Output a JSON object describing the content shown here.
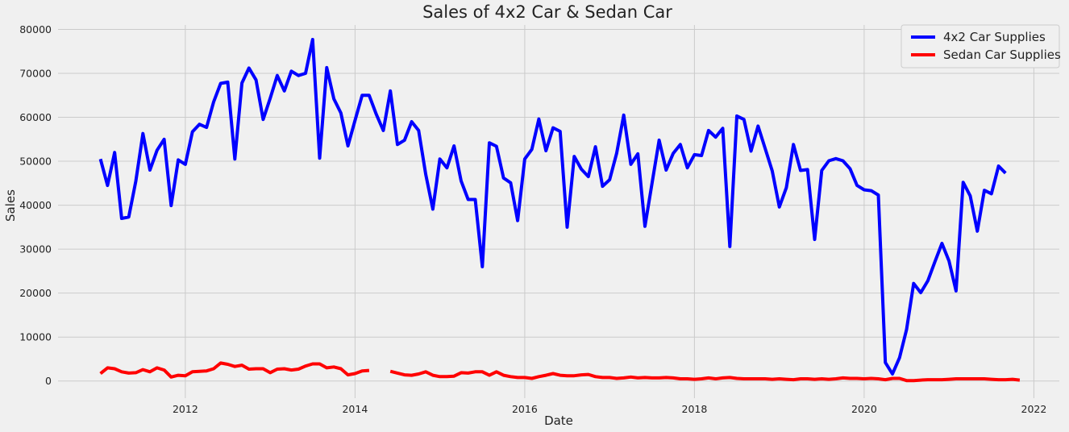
{
  "chart_data": {
    "type": "line",
    "title": "Sales of 4x2 Car & Sedan Car",
    "xlabel": "Date",
    "ylabel": "Sales",
    "xlim": [
      2010.5,
      2022.3
    ],
    "ylim": [
      -3900,
      81000
    ],
    "x_ticks": [
      2012,
      2014,
      2016,
      2018,
      2020,
      2022
    ],
    "x_tick_labels": [
      "2012",
      "2014",
      "2016",
      "2018",
      "2020",
      "2022"
    ],
    "y_ticks": [
      0,
      10000,
      20000,
      30000,
      40000,
      50000,
      60000,
      70000,
      80000
    ],
    "y_tick_labels": [
      "0",
      "10000",
      "20000",
      "30000",
      "40000",
      "50000",
      "60000",
      "70000",
      "80000"
    ],
    "grid": true,
    "legend_position": "top-right",
    "series": [
      {
        "name": "4x2 Car Supplies",
        "color": "#0000ff",
        "values": [
          50500,
          44500,
          52000,
          37000,
          37300,
          45500,
          56300,
          48000,
          52500,
          55000,
          39900,
          50300,
          49300,
          56700,
          58400,
          57700,
          63500,
          67700,
          68000,
          50500,
          67800,
          71200,
          68500,
          59500,
          64300,
          69500,
          66000,
          70500,
          69500,
          70000,
          77700,
          50700,
          71300,
          64200,
          61000,
          53500,
          59300,
          65000,
          65000,
          60700,
          57000,
          66000,
          53800,
          54800,
          59000,
          57000,
          47000,
          39100,
          50500,
          48500,
          53500,
          45500,
          41300,
          41300,
          26000,
          54200,
          53400,
          46200,
          45100,
          36500,
          50500,
          52700,
          59600,
          52400,
          57600,
          56800,
          35000,
          51100,
          48200,
          46500,
          53300,
          44300,
          45800,
          51800,
          60500,
          49300,
          51700,
          35200,
          45000,
          54800,
          48000,
          51800,
          53800,
          48500,
          51500,
          51300,
          57000,
          55500,
          57500,
          30600,
          60300,
          59500,
          52300,
          58000,
          52900,
          47800,
          39600,
          44000,
          53800,
          47900,
          48100,
          32200,
          47900,
          50100,
          50600,
          50100,
          48300,
          44500,
          43500,
          43300,
          42300,
          4200,
          1600,
          5300,
          11700,
          22200,
          20100,
          22800,
          27100,
          31300,
          27300,
          20500,
          45200,
          42100,
          34100,
          43400,
          42600,
          48900,
          47300
        ]
      },
      {
        "name": "Sedan Car Supplies",
        "color": "#ff0000",
        "values": [
          1700,
          3000,
          2800,
          2100,
          1800,
          1900,
          2600,
          2100,
          3000,
          2500,
          900,
          1300,
          1200,
          2100,
          2200,
          2300,
          2800,
          4100,
          3800,
          3300,
          3600,
          2700,
          2800,
          2800,
          1900,
          2700,
          2800,
          2500,
          2700,
          3400,
          3900,
          3900,
          3000,
          3200,
          2800,
          1400,
          1700,
          2300,
          2400,
          null,
          null,
          2200,
          1800,
          1400,
          1300,
          1600,
          2100,
          1300,
          1000,
          1000,
          1100,
          1900,
          1800,
          2100,
          2100,
          1300,
          2100,
          1300,
          1000,
          800,
          800,
          600,
          1000,
          1300,
          1700,
          1300,
          1200,
          1200,
          1400,
          1500,
          1000,
          800,
          800,
          600,
          700,
          900,
          700,
          800,
          700,
          700,
          800,
          700,
          500,
          500,
          400,
          500,
          700,
          500,
          700,
          800,
          600,
          500,
          500,
          500,
          500,
          400,
          500,
          400,
          300,
          500,
          500,
          400,
          500,
          400,
          500,
          700,
          600,
          600,
          500,
          600,
          500,
          300,
          600,
          600,
          100,
          100,
          200,
          300,
          300,
          300,
          400,
          500,
          500,
          500,
          500,
          500,
          400,
          300,
          300,
          400,
          200
        ]
      }
    ]
  }
}
